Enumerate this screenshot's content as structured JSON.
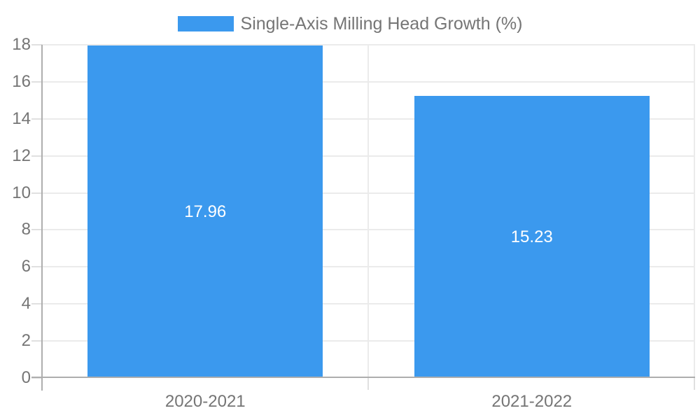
{
  "chart_data": {
    "type": "bar",
    "title": "",
    "legend": {
      "label": "Single-Axis Milling Head Growth (%)",
      "position": "top-center"
    },
    "categories": [
      "2020-2021",
      "2021-2022"
    ],
    "series": [
      {
        "name": "Single-Axis Milling Head Growth (%)",
        "values": [
          17.96,
          15.23
        ]
      }
    ],
    "value_labels": [
      "17.96",
      "15.23"
    ],
    "y_axis": {
      "min": 0,
      "max": 18,
      "tick_step": 2,
      "tick_labels": [
        "0",
        "2",
        "4",
        "6",
        "8",
        "10",
        "12",
        "14",
        "16",
        "18"
      ]
    },
    "x_axis": {
      "tick_labels": [
        "2020-2021",
        "2021-2022"
      ]
    },
    "grid": true,
    "bar_width_fraction": 0.72,
    "colors": {
      "bar": "#3B99EE",
      "axis_text": "#757575",
      "value_label_text": "#FFFFFF",
      "gridline": "#EBEBEB",
      "tick_line": "#E0E0E0",
      "axis_line": "#AEAEAE",
      "background": "#FFFFFF"
    }
  }
}
